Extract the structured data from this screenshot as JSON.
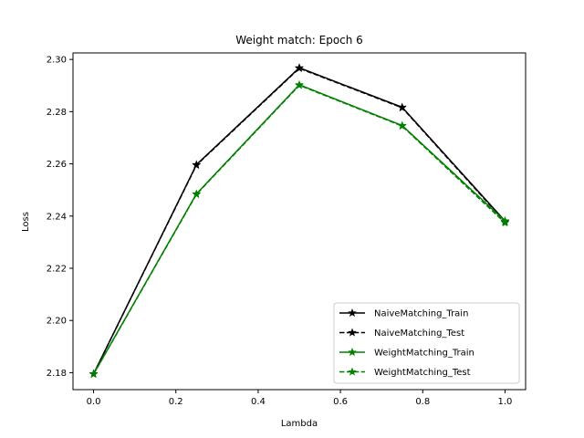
{
  "chart_data": {
    "type": "line",
    "title": "Weight match: Epoch 6",
    "xlabel": "Lambda",
    "ylabel": "Loss",
    "xlim": [
      -0.05,
      1.05
    ],
    "ylim": [
      2.1735,
      2.3025
    ],
    "xticks": [
      0.0,
      0.2,
      0.4,
      0.6,
      0.8,
      1.0
    ],
    "xtick_labels": [
      "0.0",
      "0.2",
      "0.4",
      "0.6",
      "0.8",
      "1.0"
    ],
    "yticks": [
      2.18,
      2.2,
      2.22,
      2.24,
      2.26,
      2.28,
      2.3
    ],
    "ytick_labels": [
      "2.18",
      "2.20",
      "2.22",
      "2.24",
      "2.26",
      "2.28",
      "2.30"
    ],
    "grid": false,
    "legend_position": "lower-right",
    "x": [
      0.0,
      0.25,
      0.5,
      0.75,
      1.0
    ],
    "series": [
      {
        "name": "NaiveMatching_Train",
        "values": [
          2.1795,
          2.2597,
          2.2968,
          2.2817,
          2.2381
        ],
        "color": "#000000",
        "linestyle": "solid",
        "marker": "star"
      },
      {
        "name": "NaiveMatching_Test",
        "values": [
          2.1795,
          2.2595,
          2.2966,
          2.2815,
          2.2378
        ],
        "color": "#000000",
        "linestyle": "dashed",
        "marker": "star"
      },
      {
        "name": "WeightMatching_Train",
        "values": [
          2.1795,
          2.2485,
          2.2903,
          2.2747,
          2.2381
        ],
        "color": "#008000",
        "linestyle": "solid",
        "marker": "star"
      },
      {
        "name": "WeightMatching_Test",
        "values": [
          2.1794,
          2.2483,
          2.2901,
          2.2745,
          2.2374
        ],
        "color": "#008000",
        "linestyle": "dashed",
        "marker": "star"
      }
    ]
  }
}
